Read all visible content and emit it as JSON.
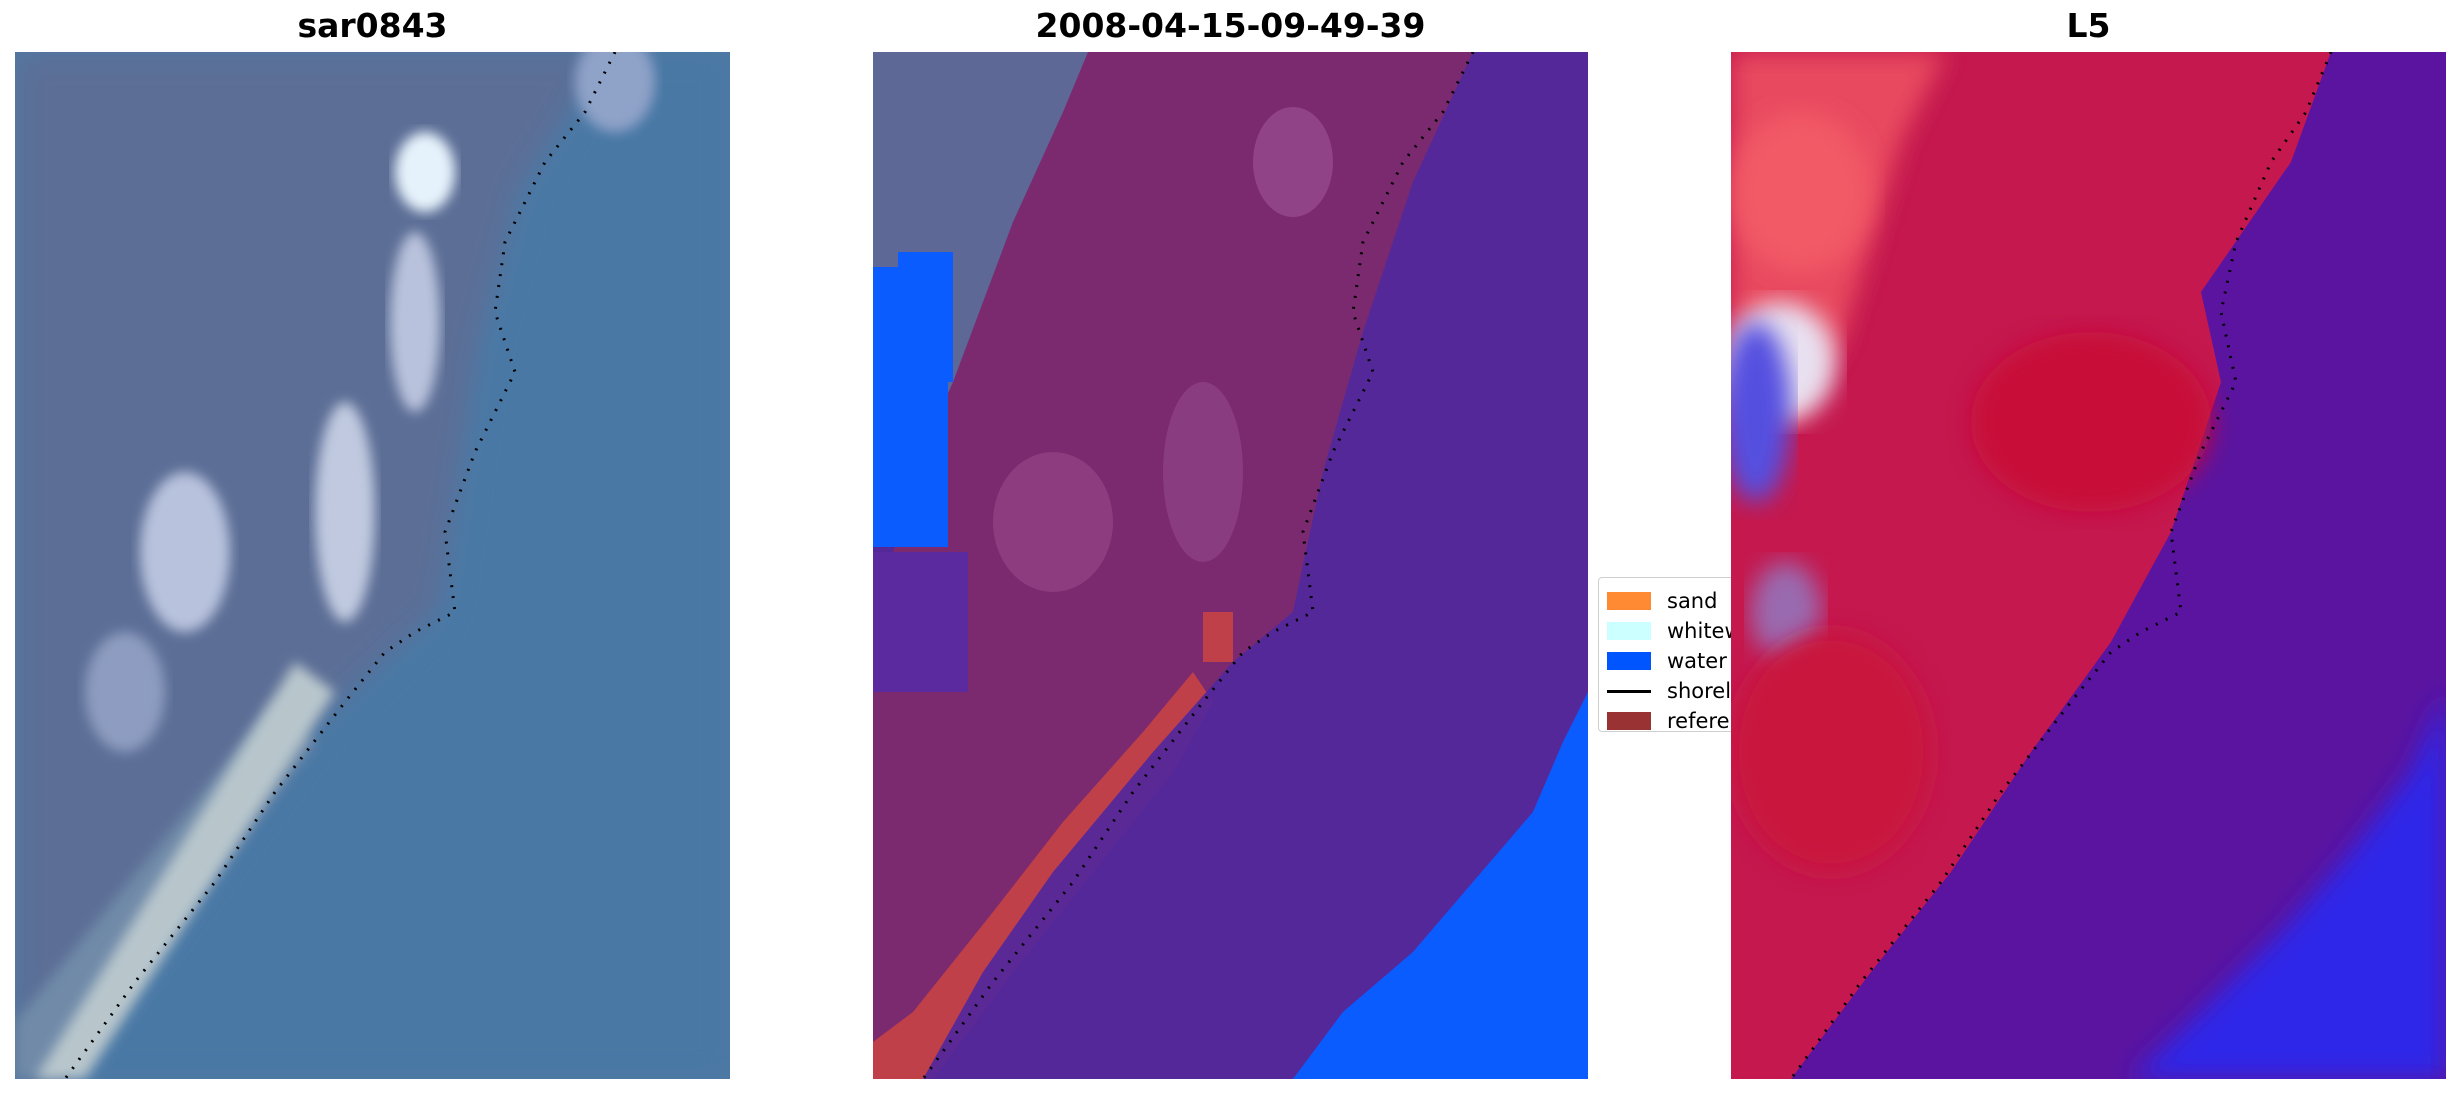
{
  "panels": [
    {
      "title": "sar0843"
    },
    {
      "title": "2008-04-15-09-49-39"
    },
    {
      "title": "L5"
    }
  ],
  "legend": {
    "items": [
      {
        "label": "sand",
        "color": "#ff8a33"
      },
      {
        "label": "whitew",
        "color": "#ccffff"
      },
      {
        "label": "water",
        "color": "#0055ff"
      },
      {
        "label": "shorel",
        "color": "#000000"
      },
      {
        "label": "referen",
        "color": "#993333"
      }
    ]
  }
}
